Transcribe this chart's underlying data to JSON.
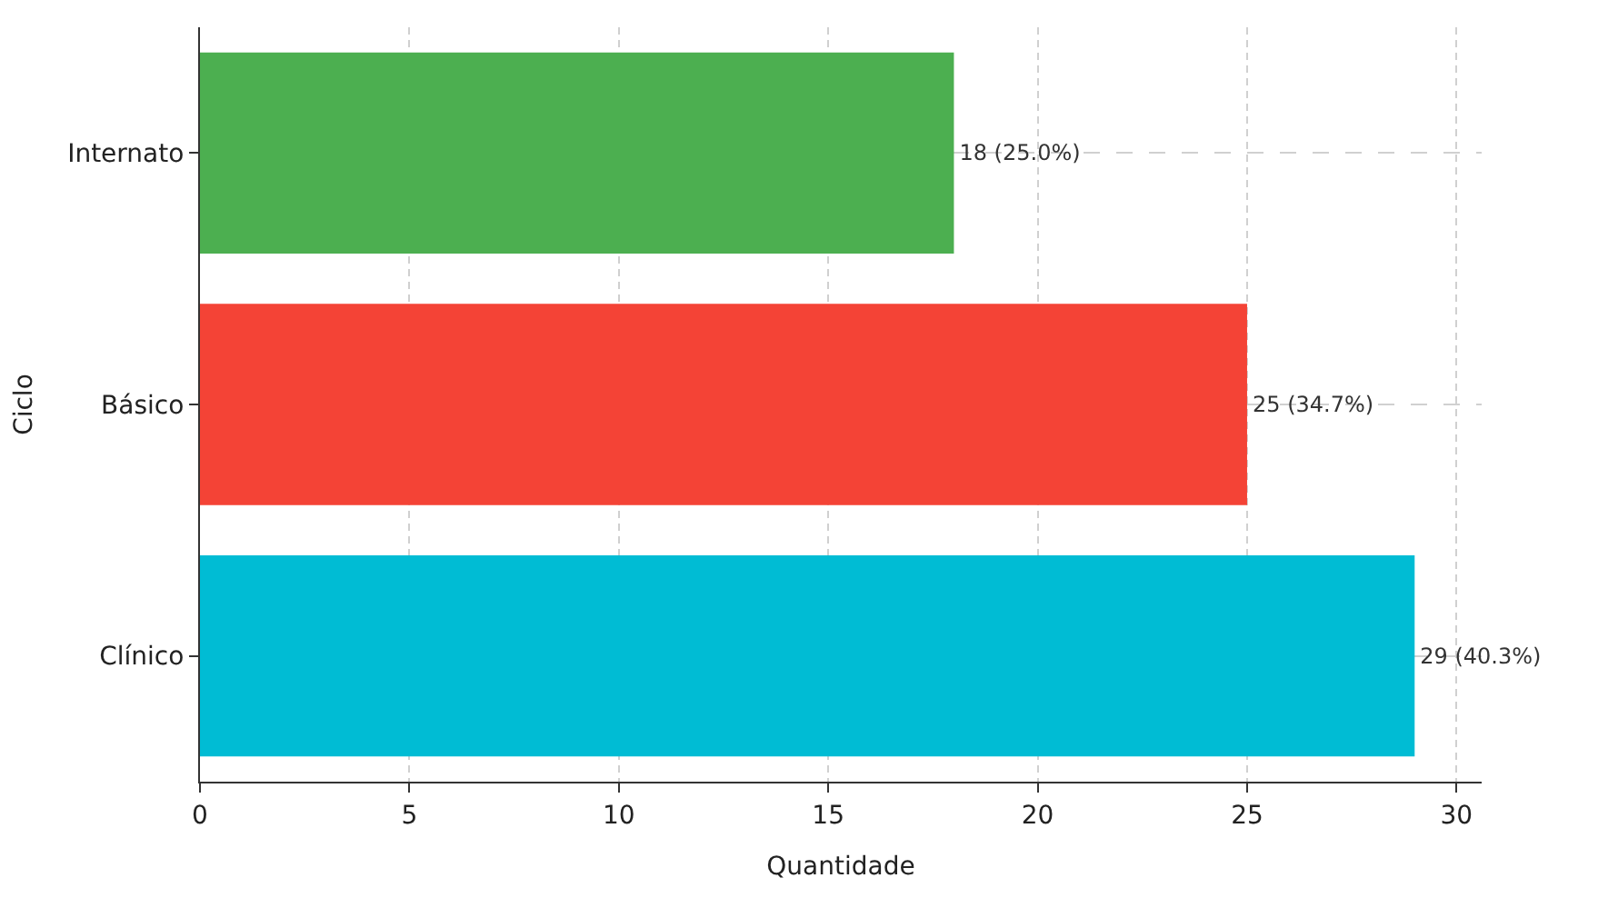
{
  "chart_data": {
    "type": "bar",
    "orientation": "horizontal",
    "xlabel": "Quantidade",
    "ylabel": "Ciclo",
    "categories": [
      "Internato",
      "Básico",
      "Clínico"
    ],
    "values": [
      18,
      25,
      29
    ],
    "colors": [
      "#4caf50",
      "#f44336",
      "#00bcd4"
    ],
    "value_labels": [
      "18 (25.0%)",
      "25 (34.7%)",
      "29 (40.3%)"
    ],
    "xlim": [
      0,
      30.6
    ],
    "xticks": [
      0,
      5,
      10,
      15,
      20,
      25,
      30
    ],
    "grid": true
  }
}
